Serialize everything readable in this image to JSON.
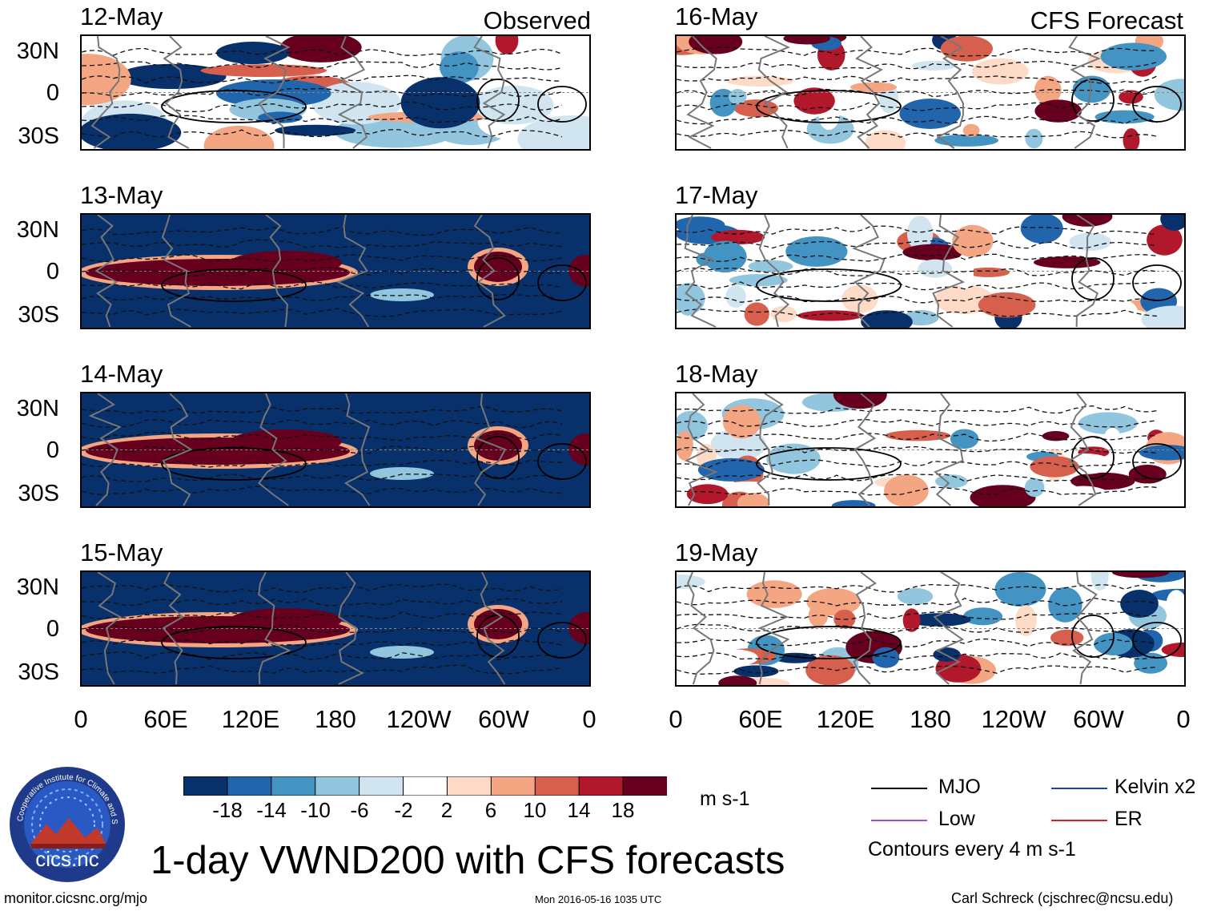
{
  "header": {
    "left_label": "Observed",
    "right_label": "CFS Forecast"
  },
  "panels_left": [
    {
      "date": "12-May",
      "style": "mixed"
    },
    {
      "date": "13-May",
      "style": "observed"
    },
    {
      "date": "14-May",
      "style": "observed"
    },
    {
      "date": "15-May",
      "style": "observed"
    }
  ],
  "panels_right": [
    {
      "date": "16-May",
      "style": "forecast"
    },
    {
      "date": "17-May",
      "style": "forecast"
    },
    {
      "date": "18-May",
      "style": "forecast"
    },
    {
      "date": "19-May",
      "style": "forecast"
    }
  ],
  "y_ticks": [
    "30N",
    "0",
    "30S"
  ],
  "x_ticks": [
    "0",
    "60E",
    "120E",
    "180",
    "120W",
    "60W",
    "0"
  ],
  "colorbar": {
    "colors": [
      "#08306b",
      "#2166ac",
      "#4393c3",
      "#92c5de",
      "#d1e5f0",
      "#ffffff",
      "#fddbc7",
      "#f4a582",
      "#d6604d",
      "#b2182b",
      "#67001f"
    ],
    "labels": [
      "-18",
      "-14",
      "-10",
      "-6",
      "-2",
      "2",
      "6",
      "10",
      "14",
      "18"
    ],
    "units": "m s-1"
  },
  "legend": {
    "mjo": {
      "label": "MJO",
      "color": "#000000"
    },
    "kelvin": {
      "label": "Kelvin x2",
      "color": "#1f3fbf"
    },
    "low": {
      "label": "Low",
      "color": "#a64bd6"
    },
    "er": {
      "label": "ER",
      "color": "#e02020"
    },
    "contour_note": "Contours every 4 m s-1"
  },
  "logo": {
    "text": "cics.nc",
    "ring_text": "Cooperative Institute for Climate and Satellites"
  },
  "title": "1-day VWND200 with CFS forecasts",
  "footer": {
    "left": "monitor.cicsnc.org/mjo",
    "center": "Mon 2016-05-16 1035 UTC",
    "right": "Carl Schreck (cjschrec@ncsu.edu)"
  }
}
